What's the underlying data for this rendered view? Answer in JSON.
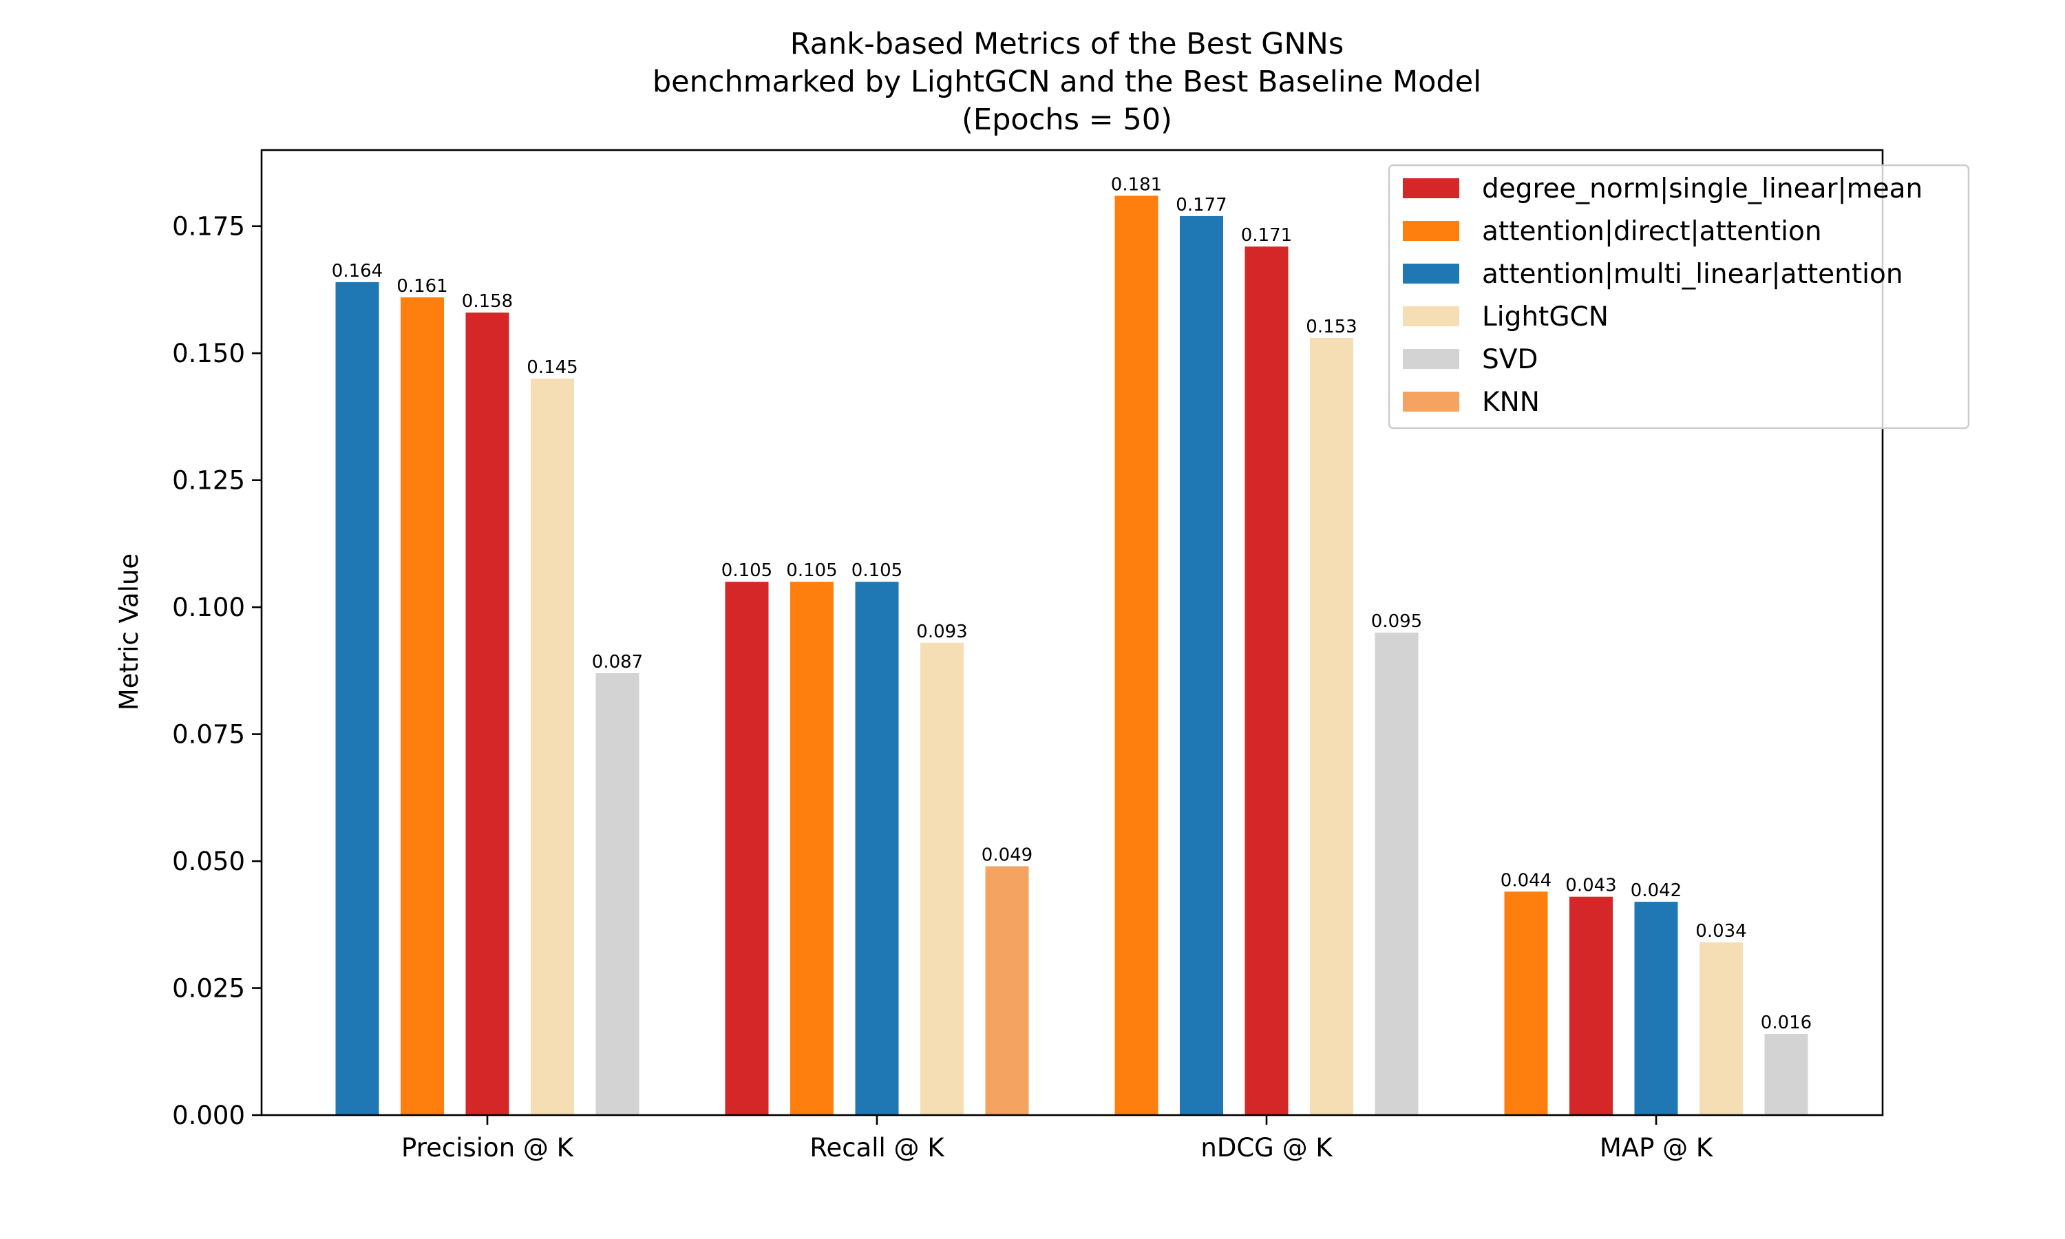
{
  "chart_data": {
    "type": "bar",
    "title_lines": [
      "Rank-based Metrics of the Best GNNs",
      "benchmarked by LightGCN and the Best Baseline Model",
      "(Epochs = 50)"
    ],
    "xlabel": "",
    "ylabel": "Metric Value",
    "ylim": [
      0,
      0.19
    ],
    "yticks": [
      "0.000",
      "0.025",
      "0.050",
      "0.075",
      "0.100",
      "0.125",
      "0.150",
      "0.175"
    ],
    "grid": false,
    "legend_position": "top-right",
    "legend": [
      {
        "name": "degree_norm|single_linear|mean",
        "color": "#d62728"
      },
      {
        "name": "attention|direct|attention",
        "color": "#ff7f0e"
      },
      {
        "name": "attention|multi_linear|attention",
        "color": "#1f77b4"
      },
      {
        "name": "LightGCN",
        "color": "#f5deb3"
      },
      {
        "name": "SVD",
        "color": "#d3d3d3"
      },
      {
        "name": "KNN",
        "color": "#f4a460"
      }
    ],
    "groups": [
      {
        "category": "Precision @ K",
        "bars": [
          {
            "series": "attention|multi_linear|attention",
            "value": 0.164,
            "label": "0.164"
          },
          {
            "series": "attention|direct|attention",
            "value": 0.161,
            "label": "0.161"
          },
          {
            "series": "degree_norm|single_linear|mean",
            "value": 0.158,
            "label": "0.158"
          },
          {
            "series": "LightGCN",
            "value": 0.145,
            "label": "0.145"
          },
          {
            "series": "SVD",
            "value": 0.087,
            "label": "0.087"
          }
        ]
      },
      {
        "category": "Recall @ K",
        "bars": [
          {
            "series": "degree_norm|single_linear|mean",
            "value": 0.105,
            "label": "0.105"
          },
          {
            "series": "attention|direct|attention",
            "value": 0.105,
            "label": "0.105"
          },
          {
            "series": "attention|multi_linear|attention",
            "value": 0.105,
            "label": "0.105"
          },
          {
            "series": "LightGCN",
            "value": 0.093,
            "label": "0.093"
          },
          {
            "series": "KNN",
            "value": 0.049,
            "label": "0.049"
          }
        ]
      },
      {
        "category": "nDCG @ K",
        "bars": [
          {
            "series": "attention|direct|attention",
            "value": 0.181,
            "label": "0.181"
          },
          {
            "series": "attention|multi_linear|attention",
            "value": 0.177,
            "label": "0.177"
          },
          {
            "series": "degree_norm|single_linear|mean",
            "value": 0.171,
            "label": "0.171"
          },
          {
            "series": "LightGCN",
            "value": 0.153,
            "label": "0.153"
          },
          {
            "series": "SVD",
            "value": 0.095,
            "label": "0.095"
          }
        ]
      },
      {
        "category": "MAP @ K",
        "bars": [
          {
            "series": "attention|direct|attention",
            "value": 0.044,
            "label": "0.044"
          },
          {
            "series": "degree_norm|single_linear|mean",
            "value": 0.043,
            "label": "0.043"
          },
          {
            "series": "attention|multi_linear|attention",
            "value": 0.042,
            "label": "0.042"
          },
          {
            "series": "LightGCN",
            "value": 0.034,
            "label": "0.034"
          },
          {
            "series": "SVD",
            "value": 0.016,
            "label": "0.016"
          }
        ]
      }
    ]
  }
}
